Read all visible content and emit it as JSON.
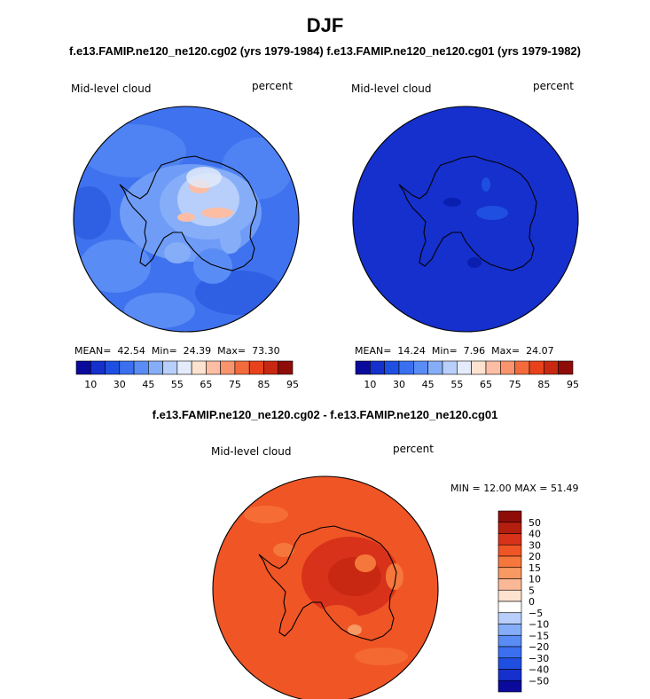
{
  "header": {
    "title": "DJF",
    "subtitle_left": "f.e13.FAMIP.ne120_ne120.cg02 (yrs 1979-1984)",
    "subtitle_right": "f.e13.FAMIP.ne120_ne120.cg01 (yrs 1979-1982)"
  },
  "panels": {
    "left": {
      "variable": "Mid-level cloud",
      "units": "percent",
      "mean_label": "MEAN=",
      "mean": "42.54",
      "min_label": "Min=",
      "min": "24.39",
      "max_label": "Max=",
      "max": "73.30"
    },
    "right": {
      "variable": "Mid-level cloud",
      "units": "percent",
      "mean_label": "MEAN=",
      "mean": "14.24",
      "min_label": "Min=",
      "min": "7.96",
      "max_label": "Max=",
      "max": "24.07"
    },
    "diff": {
      "title": "f.e13.FAMIP.ne120_ne120.cg02 - f.e13.FAMIP.ne120_ne120.cg01",
      "variable": "Mid-level cloud",
      "units": "percent",
      "min_label": "MIN =",
      "min": "12.00",
      "max_label": "MAX =",
      "max": "51.49"
    }
  },
  "colorbars": {
    "horizontal_colors": [
      "#0a0a9c",
      "#1530cc",
      "#1f4fe0",
      "#3a6ff0",
      "#5a8cf5",
      "#86aef8",
      "#b8cefb",
      "#e4ecfb",
      "#fde2cf",
      "#fbbea4",
      "#f9946e",
      "#f36a3c",
      "#e8421c",
      "#c82812",
      "#8e0d08"
    ],
    "horizontal_labels": [
      "10",
      "30",
      "45",
      "55",
      "65",
      "75",
      "85",
      "95"
    ],
    "vertical_colors_top_to_bottom": [
      "#8e0d08",
      "#b31e0e",
      "#d8321a",
      "#f05525",
      "#f6773c",
      "#f89862",
      "#fbb896",
      "#fde2cf",
      "#ffffff",
      "#b8cefb",
      "#86aef8",
      "#5a8cf5",
      "#3a6ff0",
      "#1f4fe0",
      "#1530cc",
      "#0a0a9c"
    ],
    "vertical_labels": [
      "50",
      "40",
      "30",
      "20",
      "15",
      "10",
      "5",
      "0",
      "−5",
      "−10",
      "−15",
      "−20",
      "−30",
      "−40",
      "−50"
    ]
  },
  "chart_data": [
    {
      "type": "heatmap",
      "title": "f.e13.FAMIP.ne120_ne120.cg02 (yrs 1979-1984)",
      "variable": "Mid-level cloud",
      "units": "percent",
      "projection": "south polar stereographic",
      "mean": 42.54,
      "min": 24.39,
      "max": 73.3,
      "contour_levels": [
        10,
        15,
        20,
        25,
        30,
        35,
        40,
        45,
        50,
        55,
        60,
        65,
        70,
        75,
        80,
        85,
        90,
        95
      ],
      "colorbar_ticks": [
        10,
        30,
        45,
        55,
        65,
        75,
        85,
        95
      ]
    },
    {
      "type": "heatmap",
      "title": "f.e13.FAMIP.ne120_ne120.cg01 (yrs 1979-1982)",
      "variable": "Mid-level cloud",
      "units": "percent",
      "projection": "south polar stereographic",
      "mean": 14.24,
      "min": 7.96,
      "max": 24.07,
      "colorbar_ticks": [
        10,
        30,
        45,
        55,
        65,
        75,
        85,
        95
      ]
    },
    {
      "type": "heatmap",
      "title": "f.e13.FAMIP.ne120_ne120.cg02 - f.e13.FAMIP.ne120_ne120.cg01",
      "variable": "Mid-level cloud",
      "units": "percent",
      "projection": "south polar stereographic",
      "min": 12.0,
      "max": 51.49,
      "colorbar_ticks": [
        50,
        40,
        30,
        20,
        15,
        10,
        5,
        0,
        -5,
        -10,
        -15,
        -20,
        -30,
        -40,
        -50
      ]
    }
  ]
}
